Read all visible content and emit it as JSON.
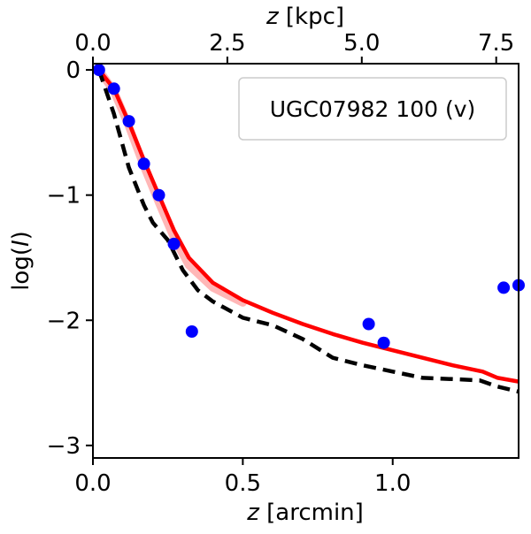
{
  "chart_data": {
    "type": "scatter",
    "legend": {
      "label": "UGC07982 100 (v)",
      "position": "top-right"
    },
    "xlabel": {
      "italic": "z",
      "rest": " [arcmin]"
    },
    "x2label": {
      "italic": "z",
      "rest": " [kpc]"
    },
    "ylabel": {
      "pre": "log(",
      "italic": "I",
      "post": ")"
    },
    "xlim": [
      0.0,
      1.42
    ],
    "ylim": [
      -3.1,
      0.05
    ],
    "kpc_per_arcmin": 5.575,
    "x_ticks": [
      0.0,
      0.5,
      1.0
    ],
    "x_tick_labels": [
      "0.0",
      "0.5",
      "1.0"
    ],
    "y_ticks": [
      0,
      -1,
      -2,
      -3
    ],
    "y_tick_labels": [
      "0",
      "−1",
      "−2",
      "−3"
    ],
    "x2_ticks": [
      0.0,
      2.5,
      5.0,
      7.5
    ],
    "x2_tick_labels": [
      "0.0",
      "2.5",
      "5.0",
      "7.5"
    ],
    "series": [
      {
        "name": "observed",
        "kind": "points",
        "color": "#0000ff",
        "x": [
          0.02,
          0.07,
          0.12,
          0.17,
          0.22,
          0.27,
          0.33,
          0.92,
          0.97,
          1.37,
          1.42
        ],
        "y": [
          0.0,
          -0.15,
          -0.41,
          -0.75,
          -1.0,
          -1.39,
          -2.09,
          -2.03,
          -2.18,
          -1.74,
          -1.72
        ]
      },
      {
        "name": "model",
        "kind": "line",
        "color": "#ff0000",
        "x": [
          0.02,
          0.07,
          0.12,
          0.17,
          0.22,
          0.27,
          0.32,
          0.4,
          0.5,
          0.6,
          0.7,
          0.8,
          0.9,
          1.0,
          1.1,
          1.2,
          1.3,
          1.35,
          1.42
        ],
        "y": [
          0.0,
          -0.15,
          -0.42,
          -0.72,
          -1.0,
          -1.28,
          -1.5,
          -1.7,
          -1.84,
          -1.94,
          -2.03,
          -2.11,
          -2.18,
          -2.24,
          -2.3,
          -2.36,
          -2.41,
          -2.46,
          -2.49
        ]
      },
      {
        "name": "model-band",
        "kind": "band",
        "color": "#ff9999",
        "x": [
          0.02,
          0.07,
          0.12,
          0.17,
          0.22,
          0.27,
          0.32,
          0.4,
          0.5
        ],
        "y": [
          0.0,
          -0.17,
          -0.45,
          -0.77,
          -1.06,
          -1.34,
          -1.56,
          -1.74,
          -1.86
        ]
      },
      {
        "name": "reference",
        "kind": "dashed",
        "color": "#000000",
        "x": [
          0.02,
          0.07,
          0.12,
          0.17,
          0.2,
          0.25,
          0.3,
          0.35,
          0.4,
          0.5,
          0.6,
          0.7,
          0.8,
          0.9,
          1.0,
          1.1,
          1.2,
          1.29,
          1.35,
          1.42
        ],
        "y": [
          0.0,
          -0.35,
          -0.78,
          -1.08,
          -1.22,
          -1.36,
          -1.6,
          -1.76,
          -1.85,
          -1.98,
          -2.04,
          -2.15,
          -2.3,
          -2.36,
          -2.41,
          -2.46,
          -2.47,
          -2.48,
          -2.53,
          -2.57
        ]
      }
    ]
  }
}
